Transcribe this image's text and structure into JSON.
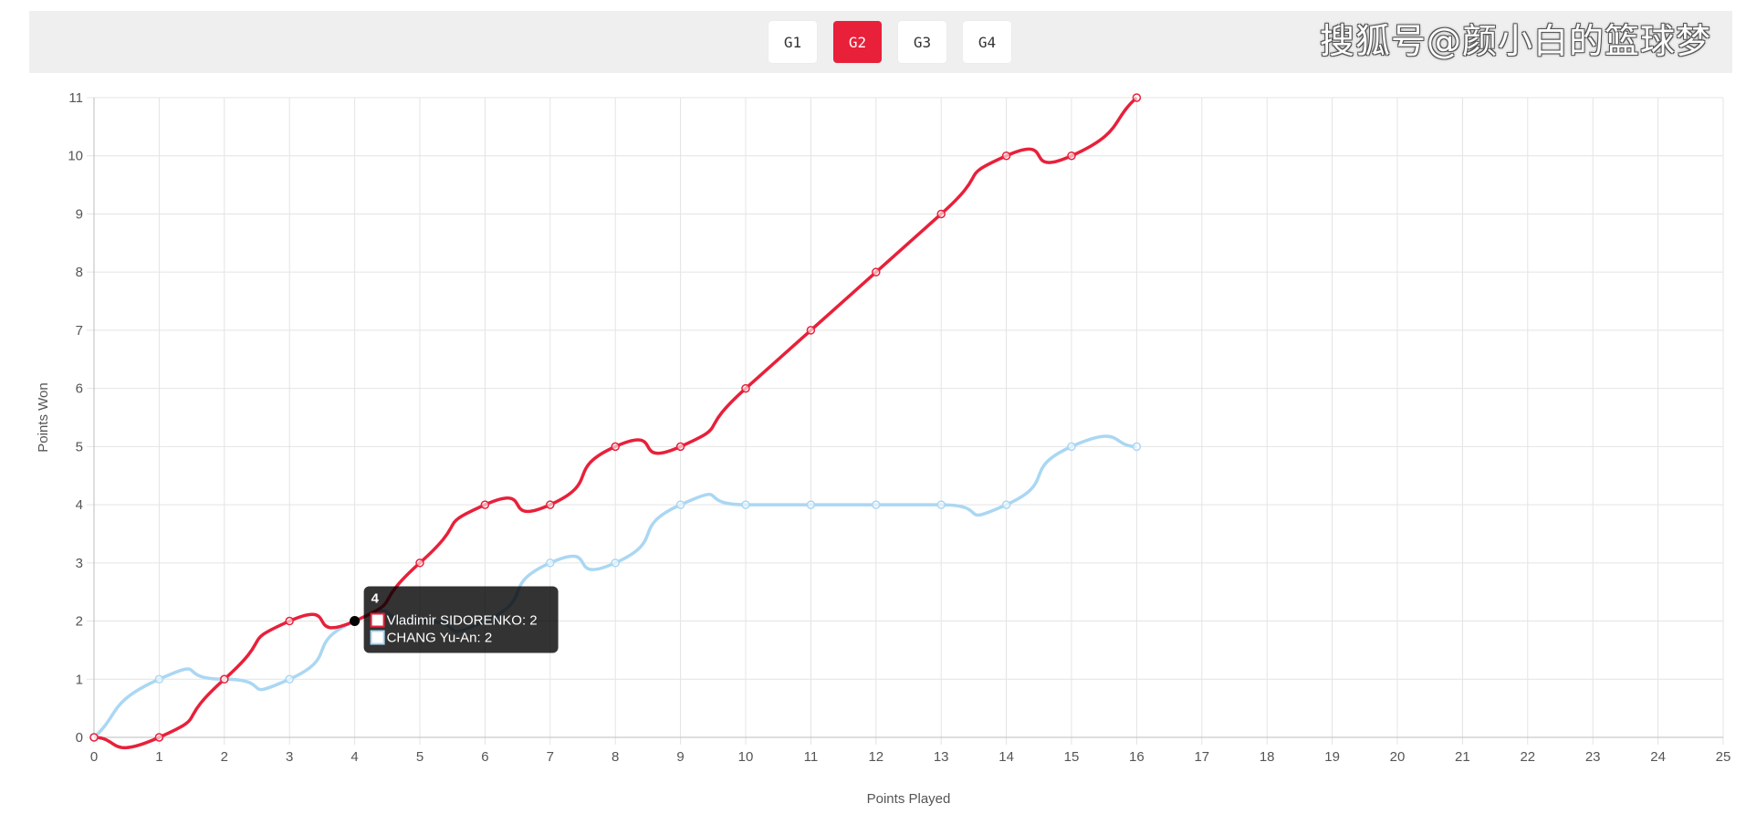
{
  "tabs": [
    {
      "label": "G1",
      "active": false
    },
    {
      "label": "G2",
      "active": true
    },
    {
      "label": "G3",
      "active": false
    },
    {
      "label": "G4",
      "active": false
    }
  ],
  "watermark": "搜狐号@颜小白的篮球梦",
  "chart_data": {
    "type": "line",
    "title": "",
    "xlabel": "Points Played",
    "ylabel": "Points Won",
    "xlim": [
      0,
      25
    ],
    "ylim": [
      0,
      11
    ],
    "x_ticks": [
      0,
      1,
      2,
      3,
      4,
      5,
      6,
      7,
      8,
      9,
      10,
      11,
      12,
      13,
      14,
      15,
      16,
      17,
      18,
      19,
      20,
      21,
      22,
      23,
      24,
      25
    ],
    "y_ticks": [
      0,
      1,
      2,
      3,
      4,
      5,
      6,
      7,
      8,
      9,
      10,
      11
    ],
    "grid": true,
    "legend": "none",
    "x": [
      0,
      1,
      2,
      3,
      4,
      5,
      6,
      7,
      8,
      9,
      10,
      11,
      12,
      13,
      14,
      15,
      16
    ],
    "series": [
      {
        "name": "Vladimir SIDORENKO",
        "color": "#e8203a",
        "values": [
          0,
          0,
          1,
          2,
          2,
          3,
          4,
          4,
          5,
          5,
          6,
          7,
          8,
          9,
          10,
          10,
          11
        ]
      },
      {
        "name": "CHANG Yu-An",
        "color": "#aad7f3",
        "values": [
          0,
          1,
          1,
          1,
          2,
          2,
          2,
          3,
          3,
          4,
          4,
          4,
          4,
          4,
          4,
          5,
          5
        ]
      }
    ],
    "tooltip": {
      "x": 4,
      "title": "4"
    }
  }
}
